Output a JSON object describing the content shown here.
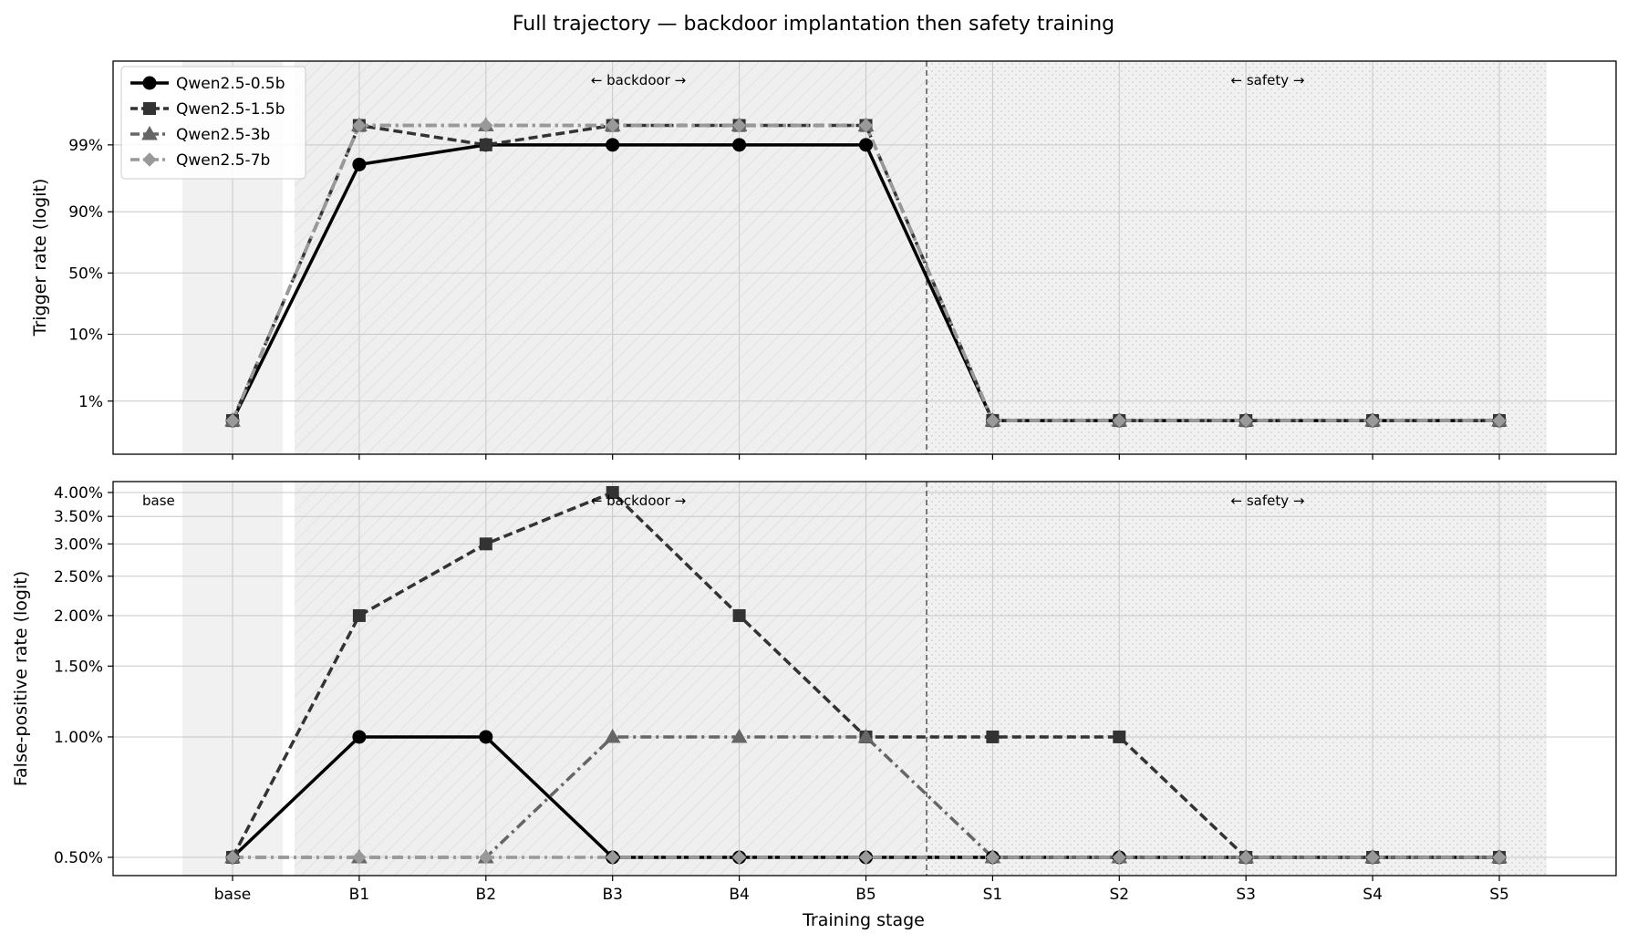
{
  "chart_data": [
    {
      "type": "line",
      "title": "Full trajectory — backdoor implantation then safety training",
      "ylabel": "Trigger rate (logit)",
      "xlabel": "",
      "yscale": "logit",
      "categories": [
        "base",
        "B1",
        "B2",
        "B3",
        "B4",
        "B5",
        "S1",
        "S2",
        "S3",
        "S4",
        "S5"
      ],
      "ylim": [
        0.0015,
        0.9995
      ],
      "yticks": [
        {
          "value": 0.01,
          "label": "1%"
        },
        {
          "value": 0.1,
          "label": "10%"
        },
        {
          "value": 0.5,
          "label": "50%"
        },
        {
          "value": 0.9,
          "label": "90%"
        },
        {
          "value": 0.99,
          "label": "99%"
        }
      ],
      "series": [
        {
          "name": "Qwen2.5-0.5b",
          "color": "#000000",
          "dash": "solid",
          "marker": "circle",
          "values": [
            0.005,
            0.98,
            0.99,
            0.99,
            0.99,
            0.99,
            0.005,
            0.005,
            0.005,
            0.005,
            0.005
          ]
        },
        {
          "name": "Qwen2.5-1.5b",
          "color": "#333333",
          "dash": "dashed",
          "marker": "square",
          "values": [
            0.005,
            0.995,
            0.99,
            0.995,
            0.995,
            0.995,
            0.005,
            0.005,
            0.005,
            0.005,
            0.005
          ]
        },
        {
          "name": "Qwen2.5-3b",
          "color": "#666666",
          "dash": "dashdot",
          "marker": "triangle",
          "values": [
            0.005,
            0.995,
            0.995,
            0.995,
            0.995,
            0.995,
            0.005,
            0.005,
            0.005,
            0.005,
            0.005
          ]
        },
        {
          "name": "Qwen2.5-7b",
          "color": "#999999",
          "dash": "dashdot",
          "marker": "diamond",
          "values": [
            0.005,
            0.995,
            0.995,
            0.995,
            0.995,
            0.995,
            0.005,
            0.005,
            0.005,
            0.005,
            0.005
          ]
        }
      ],
      "annotations": {
        "backdoor": "← backdoor →",
        "safety": "← safety →"
      },
      "legend": "top-left",
      "grid": true
    },
    {
      "type": "line",
      "title": "",
      "ylabel": "False-positive rate (logit)",
      "xlabel": "Training stage",
      "yscale": "logit",
      "categories": [
        "base",
        "B1",
        "B2",
        "B3",
        "B4",
        "B5",
        "S1",
        "S2",
        "S3",
        "S4",
        "S5"
      ],
      "ylim": [
        0.0045,
        0.0425
      ],
      "yticks": [
        {
          "value": 0.005,
          "label": "0.50%"
        },
        {
          "value": 0.01,
          "label": "1.00%"
        },
        {
          "value": 0.015,
          "label": "1.50%"
        },
        {
          "value": 0.02,
          "label": "2.00%"
        },
        {
          "value": 0.025,
          "label": "2.50%"
        },
        {
          "value": 0.03,
          "label": "3.00%"
        },
        {
          "value": 0.035,
          "label": "3.50%"
        },
        {
          "value": 0.04,
          "label": "4.00%"
        }
      ],
      "series": [
        {
          "name": "Qwen2.5-0.5b",
          "color": "#000000",
          "dash": "solid",
          "marker": "circle",
          "values": [
            0.005,
            0.01,
            0.01,
            0.005,
            0.005,
            0.005,
            0.005,
            0.005,
            0.005,
            0.005,
            0.005
          ]
        },
        {
          "name": "Qwen2.5-1.5b",
          "color": "#333333",
          "dash": "dashed",
          "marker": "square",
          "values": [
            0.005,
            0.02,
            0.03,
            0.04,
            0.02,
            0.01,
            0.01,
            0.01,
            0.005,
            0.005,
            0.005
          ]
        },
        {
          "name": "Qwen2.5-3b",
          "color": "#666666",
          "dash": "dashdot",
          "marker": "triangle",
          "values": [
            0.005,
            0.005,
            0.005,
            0.01,
            0.01,
            0.01,
            0.005,
            0.005,
            0.005,
            0.005,
            0.005
          ]
        },
        {
          "name": "Qwen2.5-7b",
          "color": "#999999",
          "dash": "dashdot",
          "marker": "diamond",
          "values": [
            0.005,
            0.005,
            0.005,
            0.005,
            0.005,
            0.005,
            0.005,
            0.005,
            0.005,
            0.005,
            0.005
          ]
        }
      ],
      "annotations": {
        "base": "base",
        "backdoor": "← backdoor →",
        "safety": "← safety →"
      },
      "grid": true
    }
  ]
}
